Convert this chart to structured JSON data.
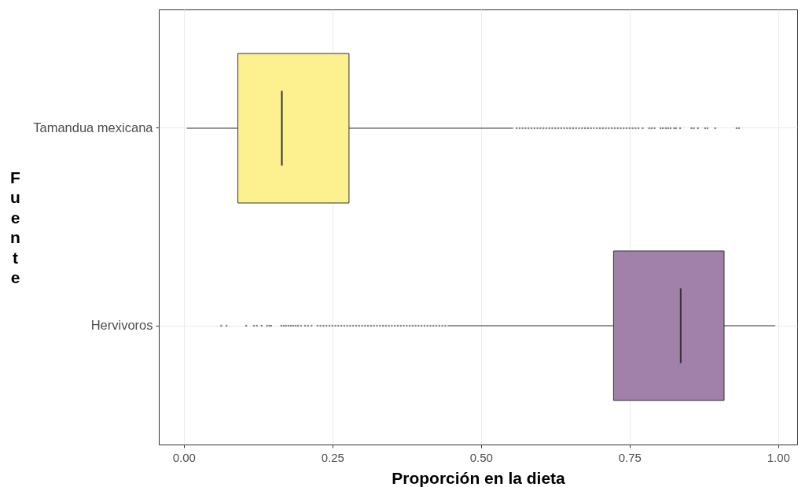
{
  "chart_data": {
    "type": "box",
    "orientation": "horizontal",
    "xlabel": "Proporción en la dieta",
    "ylabel": "Fuente",
    "categories": [
      "Tamandua mexicana",
      "Hervivoros"
    ],
    "colors": [
      "#fdf08f",
      "#a180a9"
    ],
    "boxes": [
      {
        "low": 0.005,
        "q1": 0.091,
        "median": 0.165,
        "q3": 0.278,
        "high": 0.554,
        "outliers": [
          0.56,
          0.565,
          0.57,
          0.575,
          0.58,
          0.585,
          0.59,
          0.595,
          0.6,
          0.605,
          0.61,
          0.615,
          0.62,
          0.625,
          0.63,
          0.635,
          0.64,
          0.645,
          0.65,
          0.655,
          0.66,
          0.665,
          0.67,
          0.675,
          0.68,
          0.685,
          0.69,
          0.695,
          0.7,
          0.705,
          0.71,
          0.715,
          0.72,
          0.725,
          0.73,
          0.735,
          0.74,
          0.745,
          0.75,
          0.755,
          0.76,
          0.765,
          0.772,
          0.783,
          0.787,
          0.792,
          0.802,
          0.806,
          0.811,
          0.815,
          0.819,
          0.825,
          0.828,
          0.835,
          0.854,
          0.858,
          0.865,
          0.877,
          0.881,
          0.894,
          0.93,
          0.934
        ]
      },
      {
        "low": 0.444,
        "q1": 0.723,
        "median": 0.836,
        "q3": 0.909,
        "high": 0.995,
        "outliers": [
          0.063,
          0.072,
          0.105,
          0.118,
          0.123,
          0.131,
          0.14,
          0.144,
          0.147,
          0.164,
          0.168,
          0.172,
          0.176,
          0.18,
          0.184,
          0.188,
          0.192,
          0.197,
          0.204,
          0.209,
          0.215,
          0.225,
          0.23,
          0.235,
          0.24,
          0.245,
          0.25,
          0.255,
          0.26,
          0.265,
          0.27,
          0.275,
          0.28,
          0.285,
          0.29,
          0.295,
          0.3,
          0.305,
          0.31,
          0.315,
          0.32,
          0.325,
          0.33,
          0.335,
          0.34,
          0.345,
          0.35,
          0.355,
          0.36,
          0.365,
          0.37,
          0.375,
          0.38,
          0.385,
          0.39,
          0.395,
          0.4,
          0.405,
          0.41,
          0.415,
          0.42,
          0.425,
          0.43,
          0.435,
          0.44
        ]
      }
    ],
    "xlim": [
      -0.042,
      1.032
    ],
    "xticks": [
      {
        "value": 0,
        "label": "0.00"
      },
      {
        "value": 0.25,
        "label": "0.25"
      },
      {
        "value": 0.5,
        "label": "0.50"
      },
      {
        "value": 0.75,
        "label": "0.75"
      },
      {
        "value": 1,
        "label": "1.00"
      }
    ],
    "grid": true
  }
}
